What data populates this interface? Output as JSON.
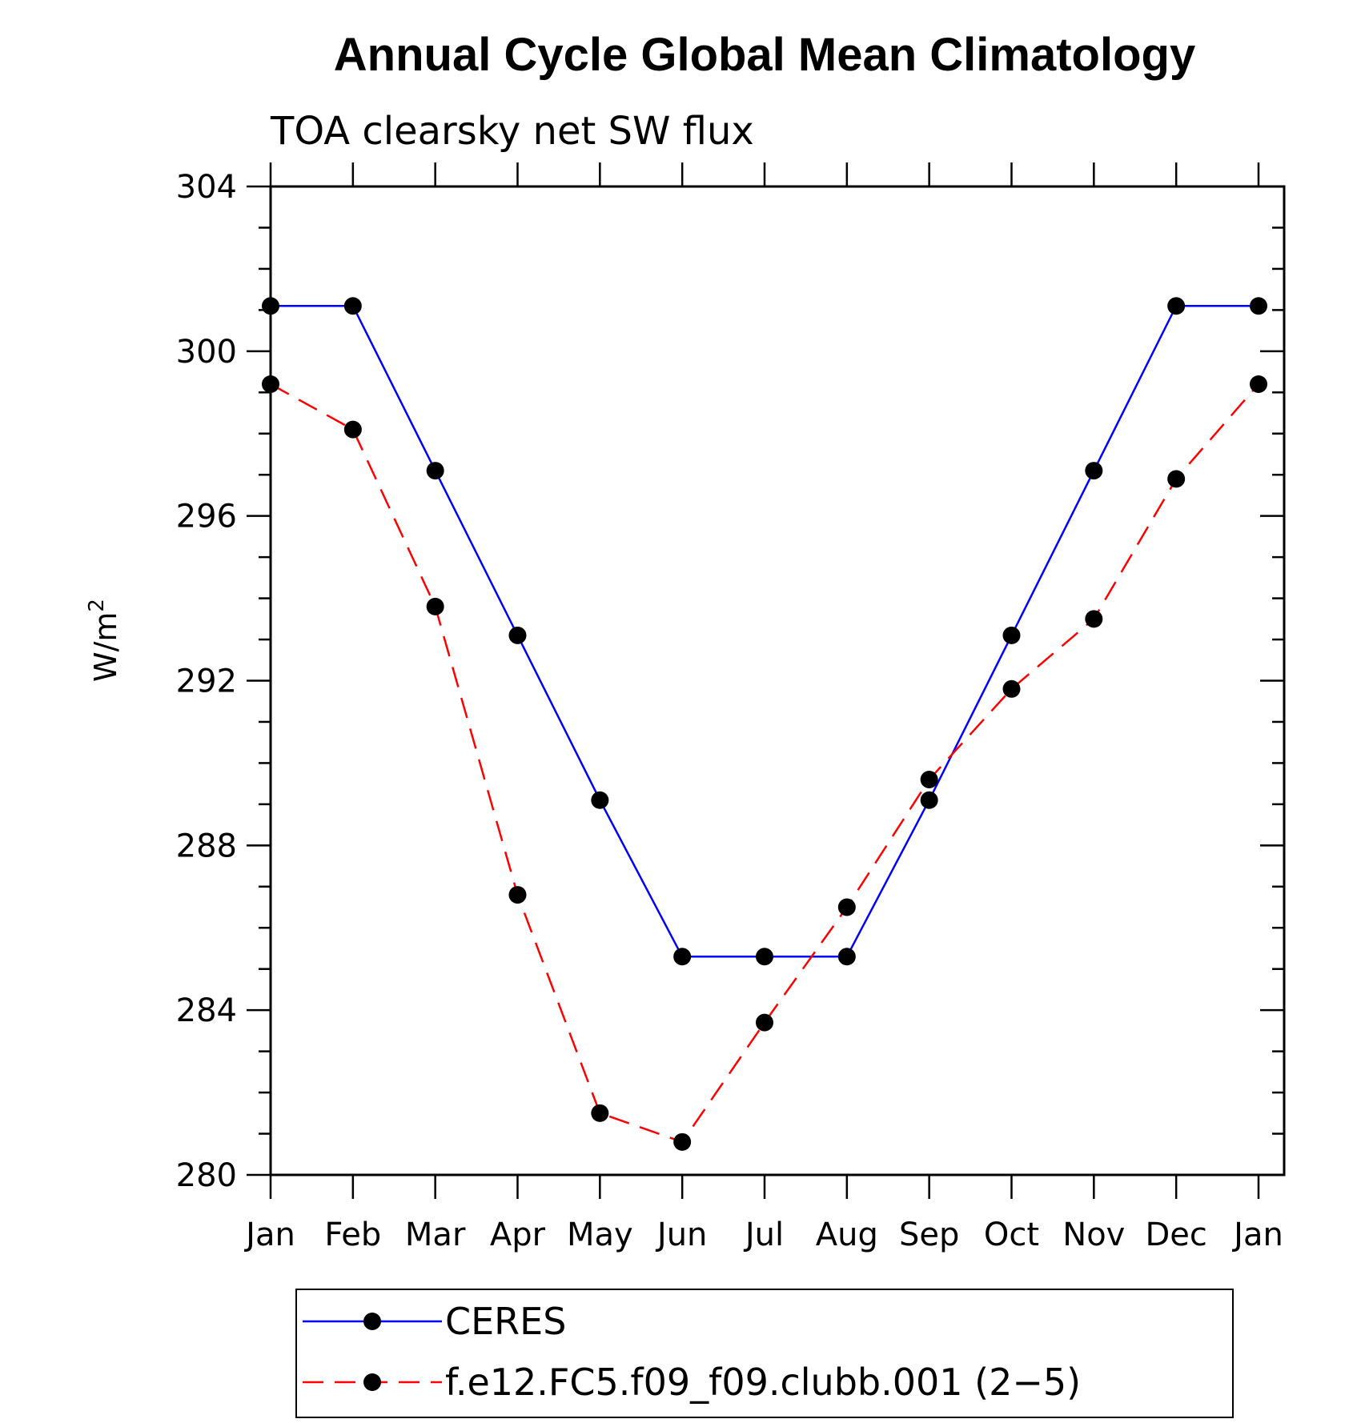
{
  "chart_data": {
    "type": "line",
    "title": "Annual Cycle Global Mean Climatology",
    "subtitle": "TOA clearsky net SW flux",
    "xlabel": "",
    "ylabel": "W/m",
    "ylabel_superscript": "2",
    "categories": [
      "Jan",
      "Feb",
      "Mar",
      "Apr",
      "May",
      "Jun",
      "Jul",
      "Aug",
      "Sep",
      "Oct",
      "Nov",
      "Dec",
      "Jan"
    ],
    "ylim": [
      280,
      304
    ],
    "yticks": [
      "280",
      "284",
      "288",
      "292",
      "296",
      "300",
      "304"
    ],
    "grid": false,
    "legend_position": "bottom",
    "series": [
      {
        "name": "CERES",
        "color": "#0000ff",
        "line_style": "solid",
        "values": [
          301.1,
          301.1,
          297.1,
          293.1,
          289.1,
          285.3,
          285.3,
          285.3,
          289.1,
          293.1,
          297.1,
          301.1,
          301.1
        ]
      },
      {
        "name": "f.e12.FC5.f09_f09.clubb.001 (2−5)",
        "color": "#ff0000",
        "line_style": "dashed",
        "values": [
          299.2,
          298.1,
          293.8,
          286.8,
          281.5,
          280.8,
          283.7,
          286.5,
          289.6,
          291.8,
          293.5,
          296.9,
          299.2
        ]
      }
    ]
  }
}
